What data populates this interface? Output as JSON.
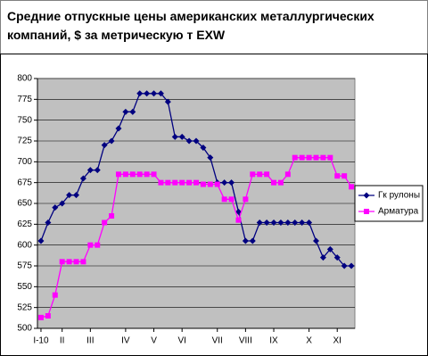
{
  "chart_data": {
    "type": "line",
    "title": "Средние отпускные цены американских металлургических компаний, $ за метрическую т EXW",
    "categories": [
      "I-10",
      null,
      null,
      "II",
      null,
      null,
      null,
      "III",
      null,
      null,
      null,
      null,
      "IV",
      null,
      null,
      null,
      "V",
      null,
      null,
      null,
      "VI",
      null,
      null,
      null,
      null,
      "VII",
      null,
      null,
      null,
      "VIII",
      null,
      null,
      null,
      "IX",
      null,
      null,
      null,
      null,
      "X",
      null,
      null,
      null,
      "XI",
      null,
      null
    ],
    "series": [
      {
        "name": "Гк рулоны",
        "color": "#000080",
        "marker": "diamond",
        "values": [
          605,
          627,
          645,
          650,
          660,
          660,
          680,
          690,
          690,
          720,
          725,
          740,
          760,
          760,
          782,
          782,
          782,
          782,
          772,
          730,
          730,
          725,
          725,
          717,
          705,
          675,
          675,
          675,
          640,
          605,
          605,
          627,
          627,
          627,
          627,
          627,
          627,
          627,
          627,
          605,
          585,
          595,
          585,
          575,
          575
        ]
      },
      {
        "name": "Арматура",
        "color": "#ff00ff",
        "marker": "square",
        "values": [
          513,
          515,
          540,
          580,
          580,
          580,
          580,
          600,
          600,
          627,
          635,
          685,
          685,
          685,
          685,
          685,
          685,
          675,
          675,
          675,
          675,
          675,
          675,
          673,
          673,
          673,
          655,
          655,
          630,
          655,
          685,
          685,
          685,
          675,
          675,
          685,
          705,
          705,
          705,
          705,
          705,
          705,
          683,
          683,
          670
        ]
      }
    ],
    "ylim": [
      500,
      800
    ],
    "yticks": [
      500,
      525,
      550,
      575,
      600,
      625,
      650,
      675,
      700,
      725,
      750,
      775,
      800
    ],
    "grid": true,
    "legend": "right"
  }
}
